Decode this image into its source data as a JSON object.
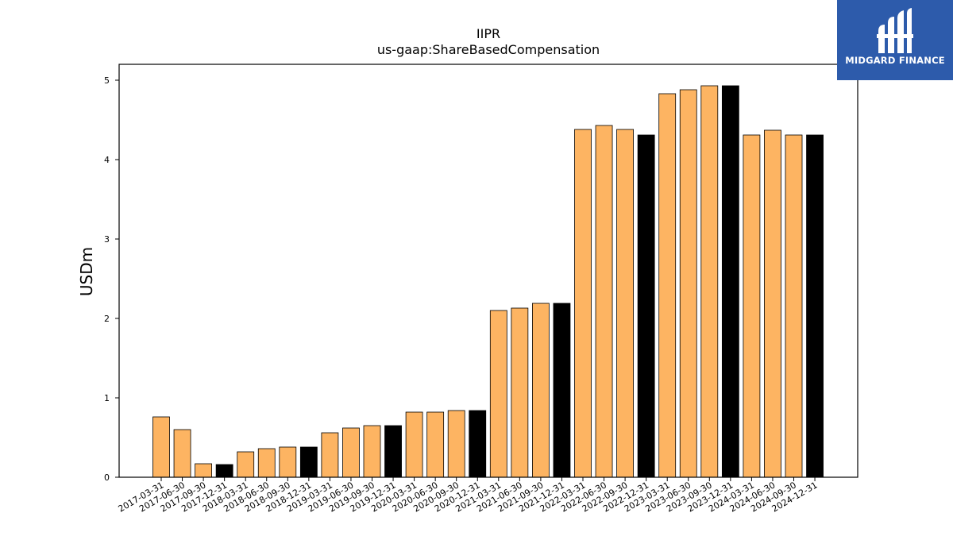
{
  "brand": {
    "name": "MIDGARD FINANCE",
    "bg_color": "#2d5bab"
  },
  "chart_data": {
    "type": "bar",
    "title": "IIPR",
    "subtitle": "us-gaap:ShareBasedCompensation",
    "xlabel": "",
    "ylabel": "USDm",
    "ylim": [
      0,
      5.2
    ],
    "yticks": [
      0,
      1,
      2,
      3,
      4,
      5
    ],
    "grid": false,
    "legend": "none",
    "colors": {
      "quarter": "#fdb462",
      "year_end": "#000000",
      "edge": "#000000"
    },
    "categories": [
      "2017-03-31",
      "2017-06-30",
      "2017-09-30",
      "2017-12-31",
      "2018-03-31",
      "2018-06-30",
      "2018-09-30",
      "2018-12-31",
      "2019-03-31",
      "2019-06-30",
      "2019-09-30",
      "2019-12-31",
      "2020-03-31",
      "2020-06-30",
      "2020-09-30",
      "2020-12-31",
      "2021-03-31",
      "2021-06-30",
      "2021-09-30",
      "2021-12-31",
      "2022-03-31",
      "2022-06-30",
      "2022-09-30",
      "2022-12-31",
      "2023-03-31",
      "2023-06-30",
      "2023-09-30",
      "2023-12-31",
      "2024-03-31",
      "2024-06-30",
      "2024-09-30",
      "2024-12-31"
    ],
    "values": [
      0.76,
      0.6,
      0.17,
      0.16,
      0.32,
      0.36,
      0.38,
      0.38,
      0.56,
      0.62,
      0.65,
      0.65,
      0.82,
      0.82,
      0.84,
      0.84,
      2.1,
      2.13,
      2.19,
      2.19,
      4.38,
      4.43,
      4.38,
      4.31,
      4.83,
      4.88,
      4.93,
      4.93,
      4.31,
      4.37,
      4.31,
      4.31
    ]
  }
}
